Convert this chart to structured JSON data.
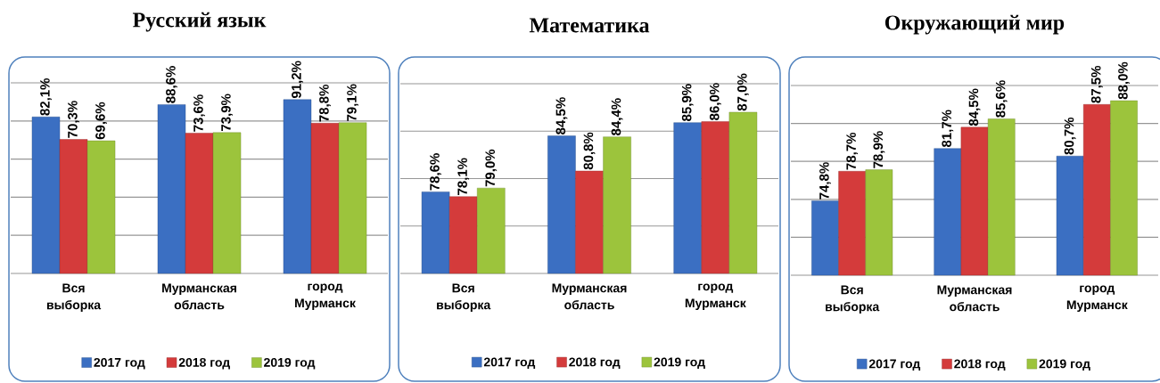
{
  "chart_data": [
    {
      "type": "bar",
      "title": "Русский язык",
      "categories": [
        "Вся выборка",
        "Мурманская область",
        "город Мурманск"
      ],
      "series": [
        {
          "name": "2017 год",
          "color": "#3b6fc2",
          "values": [
            82.1,
            88.6,
            91.2
          ],
          "value_labels": [
            "82,1%",
            "88,6%",
            "91,2%"
          ]
        },
        {
          "name": "2018 год",
          "color": "#d43b3b",
          "values": [
            70.3,
            73.6,
            78.8
          ],
          "value_labels": [
            "70,3%",
            "73,6%",
            "78,8%"
          ]
        },
        {
          "name": "2019 год",
          "color": "#9cc43c",
          "values": [
            69.6,
            73.9,
            79.1
          ],
          "value_labels": [
            "69,6%",
            "73,9%",
            "79,1%"
          ]
        }
      ],
      "ylim": [
        0,
        100
      ],
      "yticks": [
        {
          "value": 0,
          "label": null
        },
        {
          "value": 20,
          "label": null
        },
        {
          "value": 40,
          "label": null
        },
        {
          "value": 60,
          "label": null
        },
        {
          "value": 80,
          "label": null
        },
        {
          "value": 100,
          "label": null
        }
      ],
      "grid": "y",
      "legend": "bottom",
      "tick_labels": "x"
    },
    {
      "type": "bar",
      "title": "Математика",
      "categories": [
        "Вся выборка",
        "Мурманская область",
        "город Мурманск"
      ],
      "series": [
        {
          "name": "2017 год",
          "color": "#3b6fc2",
          "values": [
            78.6,
            84.5,
            85.9
          ],
          "value_labels": [
            "78,6%",
            "84,5%",
            "85,9%"
          ]
        },
        {
          "name": "2018 год",
          "color": "#d43b3b",
          "values": [
            78.1,
            80.8,
            86.0
          ],
          "value_labels": [
            "78,1%",
            "80,8%",
            "86,0%"
          ]
        },
        {
          "name": "2019 год",
          "color": "#9cc43c",
          "values": [
            79.0,
            84.4,
            87.0
          ],
          "value_labels": [
            "79,0%",
            "84,4%",
            "87,0%"
          ]
        }
      ],
      "ylim": [
        70,
        90
      ],
      "yticks": [
        {
          "value": 70,
          "label": null
        },
        {
          "value": 75,
          "label": null
        },
        {
          "value": 80,
          "label": null
        },
        {
          "value": 85,
          "label": null
        },
        {
          "value": 90,
          "label": null
        }
      ],
      "grid": "y",
      "legend": "bottom",
      "tick_labels": "x"
    },
    {
      "type": "bar",
      "title": "Окружающий мир",
      "categories": [
        "Вся выборка",
        "Мурманская область",
        "город Мурманск"
      ],
      "series": [
        {
          "name": "2017 год",
          "color": "#3b6fc2",
          "values": [
            74.8,
            81.7,
            80.7
          ],
          "value_labels": [
            "74,8%",
            "81,7%",
            "80,7%"
          ]
        },
        {
          "name": "2018 год",
          "color": "#d43b3b",
          "values": [
            78.7,
            84.5,
            87.5
          ],
          "value_labels": [
            "78,7%",
            "84,5%",
            "87,5%"
          ]
        },
        {
          "name": "2019 год",
          "color": "#9cc43c",
          "values": [
            78.9,
            85.6,
            88.0
          ],
          "value_labels": [
            "78,9%",
            "85,6%",
            "88,0%"
          ]
        }
      ],
      "ylim": [
        65,
        90
      ],
      "yticks": [
        {
          "value": 65,
          "label": null
        },
        {
          "value": 70,
          "label": null
        },
        {
          "value": 75,
          "label": null
        },
        {
          "value": 80,
          "label": null
        },
        {
          "value": 85,
          "label": null
        },
        {
          "value": 90,
          "label": null
        }
      ],
      "grid": "y",
      "legend": "bottom",
      "tick_labels": "x"
    }
  ]
}
